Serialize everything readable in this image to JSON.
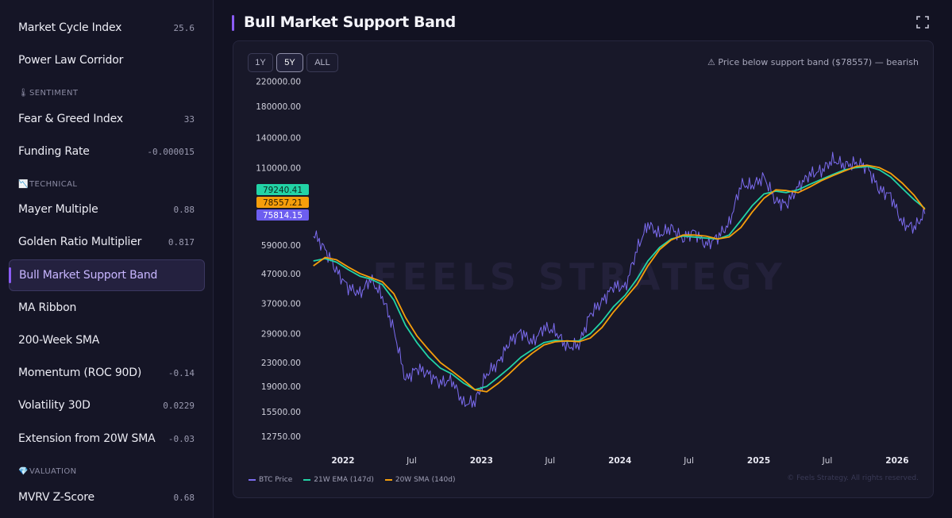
{
  "sidebar": {
    "items_top": [
      {
        "label": "Market Cycle Index",
        "value": "25.6"
      },
      {
        "label": "Power Law Corridor",
        "value": ""
      }
    ],
    "sentiment": {
      "title": "SENTIMENT",
      "items": [
        {
          "label": "Fear & Greed Index",
          "value": "33"
        },
        {
          "label": "Funding Rate",
          "value": "-0.000015"
        }
      ]
    },
    "technical": {
      "title": "TECHNICAL",
      "items": [
        {
          "label": "Mayer Multiple",
          "value": "0.88"
        },
        {
          "label": "Golden Ratio Multiplier",
          "value": "0.817"
        },
        {
          "label": "Bull Market Support Band",
          "value": ""
        },
        {
          "label": "MA Ribbon",
          "value": ""
        },
        {
          "label": "200-Week SMA",
          "value": ""
        },
        {
          "label": "Momentum (ROC 90D)",
          "value": "-0.14"
        },
        {
          "label": "Volatility 30D",
          "value": "0.0229"
        },
        {
          "label": "Extension from 20W SMA",
          "value": "-0.03"
        }
      ]
    },
    "valuation": {
      "title": "VALUATION",
      "items": [
        {
          "label": "MVRV Z-Score",
          "value": "0.68"
        }
      ]
    }
  },
  "header": {
    "title": "Bull Market Support Band"
  },
  "controls": {
    "ranges": [
      "1Y",
      "5Y",
      "ALL"
    ],
    "selected": "5Y"
  },
  "status": {
    "text": "⚠ Price below support band ($78557) — bearish"
  },
  "watermark": "FEELS STRATEGY",
  "copyright": "© Feels Strategy. All rights reserved.",
  "colors": {
    "price": "#7c6cf0",
    "ema": "#22d3a6",
    "sma": "#f59e0b",
    "accent": "#8b5cf6"
  },
  "chart_data": {
    "type": "line",
    "y_scale": "log",
    "ylim": [
      11500,
      235000
    ],
    "y_ticks": [
      "220000.00",
      "180000.00",
      "140000.00",
      "110000.00",
      "59000.00",
      "47000.00",
      "37000.00",
      "29000.00",
      "23000.00",
      "19000.00",
      "15500.00",
      "12750.00"
    ],
    "x_ticks": [
      "2022",
      "Jul",
      "2023",
      "Jul",
      "2024",
      "Jul",
      "2025",
      "Jul",
      "2026"
    ],
    "last_values": {
      "ema": "79240.41",
      "sma": "78557.21",
      "price": "75814.15"
    },
    "x": [
      "2021-10",
      "2021-11",
      "2021-12",
      "2022-01",
      "2022-02",
      "2022-03",
      "2022-04",
      "2022-05",
      "2022-06",
      "2022-07",
      "2022-08",
      "2022-09",
      "2022-10",
      "2022-11",
      "2022-12",
      "2023-01",
      "2023-02",
      "2023-03",
      "2023-04",
      "2023-05",
      "2023-06",
      "2023-07",
      "2023-08",
      "2023-09",
      "2023-10",
      "2023-11",
      "2023-12",
      "2024-01",
      "2024-02",
      "2024-03",
      "2024-04",
      "2024-05",
      "2024-06",
      "2024-07",
      "2024-08",
      "2024-09",
      "2024-10",
      "2024-11",
      "2024-12",
      "2025-01",
      "2025-02",
      "2025-03",
      "2025-04",
      "2025-05",
      "2025-06",
      "2025-07",
      "2025-08",
      "2025-09",
      "2025-10",
      "2025-11",
      "2025-12",
      "2026-01",
      "2026-02",
      "2026-03"
    ],
    "series": [
      {
        "name": "BTC Price",
        "values": [
          65000,
          57000,
          48000,
          42000,
          40000,
          45000,
          39000,
          30000,
          20000,
          22000,
          21000,
          19500,
          20000,
          16500,
          16800,
          21000,
          23000,
          27000,
          29500,
          27000,
          30500,
          29500,
          26000,
          26500,
          34000,
          37500,
          42500,
          42000,
          57000,
          70000,
          64000,
          68000,
          62000,
          66000,
          59000,
          63000,
          70000,
          96000,
          95000,
          102000,
          84000,
          82000,
          94000,
          104000,
          107000,
          117000,
          112000,
          114000,
          110000,
          92000,
          88000,
          70000,
          68000,
          75814
        ]
      },
      {
        "name": "21W EMA (147d)",
        "values": [
          52000,
          53000,
          51500,
          48500,
          46000,
          45000,
          43000,
          38000,
          31000,
          27000,
          24000,
          22000,
          21000,
          19500,
          18500,
          19000,
          20500,
          22000,
          24000,
          25500,
          27000,
          27500,
          27300,
          27400,
          29000,
          32000,
          36000,
          39500,
          45000,
          52000,
          58000,
          62000,
          63500,
          63000,
          62500,
          62000,
          64000,
          72000,
          81000,
          89000,
          91000,
          90000,
          92000,
          96000,
          100000,
          104000,
          108000,
          110000,
          111000,
          108000,
          102000,
          93000,
          85000,
          79240
        ]
      },
      {
        "name": "20W SMA (140d)",
        "values": [
          50000,
          53500,
          52500,
          49500,
          47000,
          45500,
          44000,
          40000,
          33000,
          28500,
          25500,
          23000,
          21500,
          20000,
          18500,
          18200,
          19500,
          21000,
          23000,
          24800,
          26500,
          27200,
          27400,
          27200,
          28000,
          30500,
          34500,
          38500,
          43000,
          50000,
          57000,
          61500,
          64000,
          64000,
          63500,
          62000,
          63000,
          68000,
          77000,
          86000,
          92000,
          91500,
          90000,
          94000,
          99000,
          103000,
          107000,
          111000,
          112000,
          110000,
          105000,
          97000,
          88000,
          78557
        ]
      }
    ]
  }
}
